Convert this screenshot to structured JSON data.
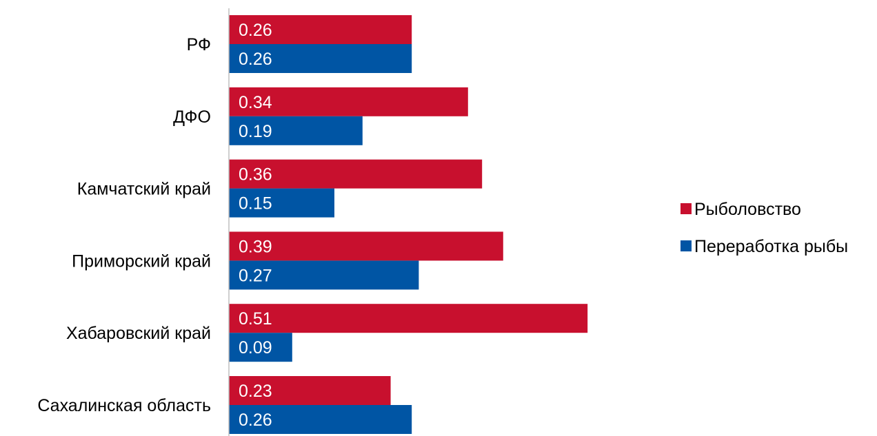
{
  "chart_data": {
    "type": "bar",
    "orientation": "horizontal",
    "categories": [
      "РФ",
      "ДФО",
      "Камчатский край",
      "Приморский край",
      "Хабаровский край",
      "Сахалинская область"
    ],
    "series": [
      {
        "name": "Рыболовство",
        "color": "#C8102E",
        "values": [
          0.26,
          0.34,
          0.36,
          0.39,
          0.51,
          0.23
        ]
      },
      {
        "name": "Переработка рыбы",
        "color": "#0055A4",
        "values": [
          0.26,
          0.19,
          0.15,
          0.27,
          0.09,
          0.26
        ]
      }
    ],
    "data_labels": {
      "Рыболовство": [
        "0.26",
        "0.34",
        "0.36",
        "0.39",
        "0.51",
        "0.23"
      ],
      "Переработка рыбы": [
        "0.26",
        "0.19",
        "0.15",
        "0.27",
        "0.09",
        "0.26"
      ]
    },
    "title": "",
    "xlabel": "",
    "ylabel": "",
    "xlim": [
      0,
      0.6
    ],
    "grid": false,
    "legend": "right"
  },
  "colors": {
    "axis": "#BFBFBF",
    "text": "#000000",
    "value_text": "#FFFFFF"
  }
}
